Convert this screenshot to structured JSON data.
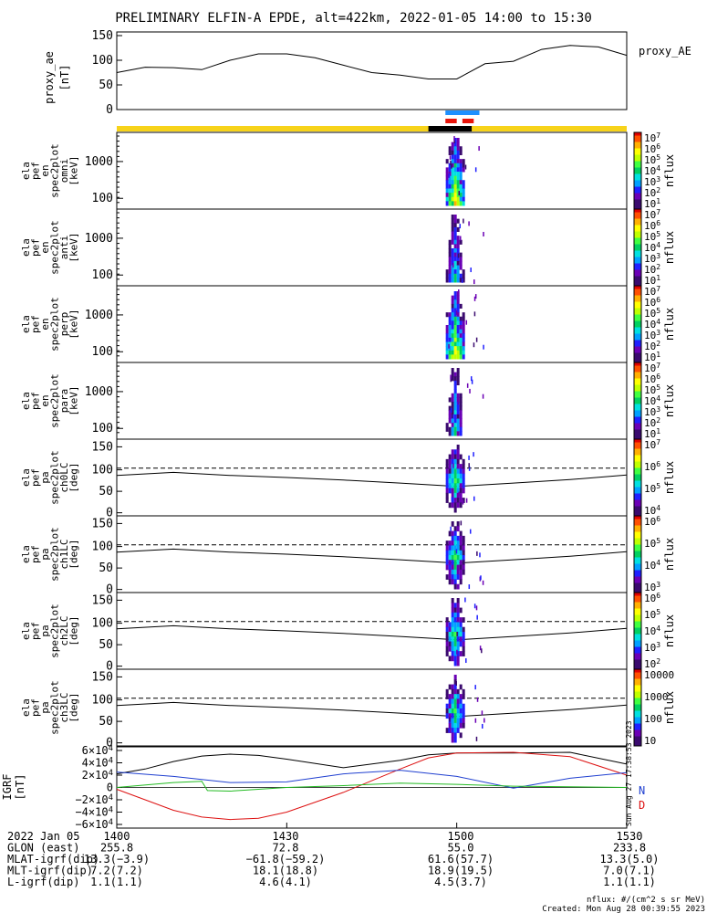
{
  "title": "PRELIMINARY ELFIN-A EPDE, alt=422km, 2022-01-05 14:00 to 15:30",
  "panels": [
    {
      "ylabel": [
        "ela",
        "pef",
        "en",
        "spec2plot",
        "omni",
        "[keV]"
      ],
      "yticks": [
        "1000",
        "100"
      ],
      "cbar_ticks": [
        "10^7",
        "10^6",
        "10^5",
        "10^4",
        "10^3",
        "10^2",
        "10^1"
      ],
      "cbar_label": "nflux"
    },
    {
      "ylabel": [
        "ela",
        "pef",
        "en",
        "spec2plot",
        "anti",
        "[keV]"
      ],
      "yticks": [
        "1000",
        "100"
      ],
      "cbar_ticks": [
        "10^7",
        "10^6",
        "10^5",
        "10^4",
        "10^3",
        "10^2",
        "10^1"
      ],
      "cbar_label": "nflux"
    },
    {
      "ylabel": [
        "ela",
        "pef",
        "en",
        "spec2plot",
        "perp",
        "[keV]"
      ],
      "yticks": [
        "1000",
        "100"
      ],
      "cbar_ticks": [
        "10^7",
        "10^6",
        "10^5",
        "10^4",
        "10^3",
        "10^2",
        "10^1"
      ],
      "cbar_label": "nflux"
    },
    {
      "ylabel": [
        "ela",
        "pef",
        "en",
        "spec2plot",
        "para",
        "[keV]"
      ],
      "yticks": [
        "1000",
        "100"
      ],
      "cbar_ticks": [
        "10^7",
        "10^6",
        "10^5",
        "10^4",
        "10^3",
        "10^2",
        "10^1"
      ],
      "cbar_label": "nflux"
    },
    {
      "ylabel": [
        "ela",
        "pef",
        "pa",
        "spec2plot",
        "ch0LC",
        "[deg]"
      ],
      "yticks": [
        "150",
        "100",
        "50",
        "0"
      ],
      "cbar_ticks": [
        "10^7",
        "10^6",
        "10^5",
        "10^4"
      ],
      "cbar_label": "nflux"
    },
    {
      "ylabel": [
        "ela",
        "pef",
        "pa",
        "spec2plot",
        "ch1LC",
        "[deg]"
      ],
      "yticks": [
        "150",
        "100",
        "50",
        "0"
      ],
      "cbar_ticks": [
        "10^6",
        "10^5",
        "10^4",
        "10^3"
      ],
      "cbar_label": "nflux"
    },
    {
      "ylabel": [
        "ela",
        "pef",
        "pa",
        "spec2plot",
        "ch2LC",
        "[deg]"
      ],
      "yticks": [
        "150",
        "100",
        "50",
        "0"
      ],
      "cbar_ticks": [
        "10^6",
        "10^5",
        "10^4",
        "10^3",
        "10^2"
      ],
      "cbar_label": "nflux"
    },
    {
      "ylabel": [
        "ela",
        "pef",
        "pa",
        "spec2plot",
        "ch3LC",
        "[deg]"
      ],
      "yticks": [
        "150",
        "100",
        "50",
        "0"
      ],
      "cbar_ticks": [
        "10000",
        "1000",
        "100",
        "10"
      ],
      "cbar_label": "nflux"
    }
  ],
  "ae_panel": {
    "ylabel": [
      "proxy_ae",
      "[nT]"
    ],
    "yticks": [
      "150",
      "100",
      "50",
      "0"
    ],
    "legend": "proxy_AE"
  },
  "igrf_panel": {
    "ylabel": [
      "IGRF",
      "[nT]"
    ],
    "yticks": [
      "6×10^4",
      "4×10^4",
      "2×10^4",
      "0",
      "−2×10^4",
      "−4×10^4",
      "−6×10^4"
    ],
    "legend": [
      "N",
      "D"
    ],
    "side_text": "Sun Aug 27 17:38:53 2023"
  },
  "colors": {
    "ae": "#000000",
    "igrf_black": "#000000",
    "igrf_blue": "#1f3fd0",
    "igrf_green": "#22bb22",
    "igrf_red": "#dd1111",
    "yellow_bar": "#f7d31a",
    "black_bar": "#000000",
    "blue_bar": "#1e90ff",
    "red_bar": "#e8140a"
  },
  "bottom_table": {
    "rows": [
      {
        "label": "2022 Jan 05",
        "values": [
          "1400",
          "1430",
          "1500",
          "1530"
        ]
      },
      {
        "label": "GLON (east)",
        "values": [
          "255.8",
          "72.8",
          "55.0",
          "233.8"
        ]
      },
      {
        "label": "MLAT-igrf(dip)",
        "values": [
          "13.3(−3.9)",
          "−61.8(−59.2)",
          "61.6(57.7)",
          "13.3(5.0)"
        ]
      },
      {
        "label": "MLT-igrf(dip)",
        "values": [
          "7.2(7.2)",
          "18.1(18.8)",
          "18.9(19.5)",
          "7.0(7.1)"
        ]
      },
      {
        "label": "L-igrf(dip)",
        "values": [
          "1.1(1.1)",
          "4.6(4.1)",
          "4.5(3.7)",
          "1.1(1.1)"
        ]
      }
    ]
  },
  "footer": [
    "nflux: #/(cm^2 s sr MeV)",
    "Created: Mon Aug 28 00:39:55 2023"
  ],
  "chart_data": [
    {
      "type": "line",
      "title": "PRELIMINARY ELFIN-A EPDE, alt=422km, 2022-01-05 14:00 to 15:30",
      "ylabel": "proxy_ae [nT]",
      "ylim": [
        0,
        150
      ],
      "xlim": [
        "14:00",
        "15:30"
      ],
      "series": [
        {
          "name": "proxy_AE",
          "x": [
            "14:00",
            "14:05",
            "14:10",
            "14:15",
            "14:20",
            "14:25",
            "14:30",
            "14:35",
            "14:40",
            "14:45",
            "14:50",
            "14:55",
            "15:00",
            "15:05",
            "15:10",
            "15:15",
            "15:20",
            "15:25",
            "15:30"
          ],
          "values": [
            75,
            86,
            85,
            81,
            100,
            113,
            113,
            105,
            90,
            75,
            70,
            62,
            62,
            93,
            98,
            122,
            130,
            127,
            110
          ]
        }
      ]
    },
    {
      "type": "heatmap",
      "ylabel": "ela pef en spec2plot omni [keV]",
      "yscale": "log",
      "cbar_label": "nflux",
      "cbar_range": [
        "10^1",
        "10^7"
      ],
      "active_interval": [
        "14:58",
        "15:04"
      ]
    },
    {
      "type": "heatmap",
      "ylabel": "ela pef en spec2plot anti [keV]",
      "yscale": "log",
      "cbar_label": "nflux",
      "cbar_range": [
        "10^1",
        "10^7"
      ],
      "active_interval": [
        "14:58",
        "15:04"
      ]
    },
    {
      "type": "heatmap",
      "ylabel": "ela pef en spec2plot perp [keV]",
      "yscale": "log",
      "cbar_label": "nflux",
      "cbar_range": [
        "10^1",
        "10^7"
      ],
      "active_interval": [
        "14:58",
        "15:04"
      ]
    },
    {
      "type": "heatmap",
      "ylabel": "ela pef en spec2plot para [keV]",
      "yscale": "log",
      "cbar_label": "nflux",
      "cbar_range": [
        "10^1",
        "10^7"
      ],
      "active_interval": [
        "14:58",
        "15:04"
      ]
    },
    {
      "type": "heatmap",
      "ylabel": "ela pef pa spec2plot ch0LC [deg]",
      "ylim": [
        0,
        180
      ],
      "cbar_label": "nflux",
      "cbar_range": [
        "10^4",
        "10^7"
      ],
      "lines": [
        {
          "name": "loss cone",
          "x": [
            "14:00",
            "14:10",
            "14:20",
            "14:30",
            "14:40",
            "14:50",
            "15:00",
            "15:10",
            "15:20",
            "15:30"
          ],
          "values": [
            95,
            102,
            95,
            90,
            84,
            77,
            69,
            77,
            85,
            96
          ]
        },
        {
          "name": "anti loss cone",
          "x": [
            "14:00",
            "15:30"
          ],
          "values": [
            112,
            112
          ]
        }
      ]
    },
    {
      "type": "heatmap",
      "ylabel": "ela pef pa spec2plot ch1LC [deg]",
      "ylim": [
        0,
        180
      ],
      "cbar_label": "nflux",
      "cbar_range": [
        "10^3",
        "10^6"
      ]
    },
    {
      "type": "heatmap",
      "ylabel": "ela pef pa spec2plot ch2LC [deg]",
      "ylim": [
        0,
        180
      ],
      "cbar_label": "nflux",
      "cbar_range": [
        "10^2",
        "10^6"
      ]
    },
    {
      "type": "heatmap",
      "ylabel": "ela pef pa spec2plot ch3LC [deg]",
      "ylim": [
        0,
        180
      ],
      "cbar_label": "nflux",
      "cbar_range": [
        "10",
        "10000"
      ]
    },
    {
      "type": "line",
      "ylabel": "IGRF [nT]",
      "ylim": [
        -60000,
        60000
      ],
      "series": [
        {
          "name": "N",
          "x": [
            "14:00",
            "14:05",
            "14:10",
            "14:15",
            "14:20",
            "14:25",
            "14:30",
            "14:40",
            "14:50",
            "14:55",
            "15:00",
            "15:10",
            "15:20",
            "15:30"
          ],
          "values": [
            22000,
            30000,
            42000,
            51000,
            54000,
            52000,
            46000,
            32000,
            44000,
            53000,
            56000,
            56000,
            57000,
            38000
          ]
        },
        {
          "name": "D",
          "x": [
            "14:00",
            "14:05",
            "14:10",
            "14:15",
            "14:20",
            "14:25",
            "14:30",
            "14:40",
            "14:50",
            "14:55",
            "15:00",
            "15:10",
            "15:20",
            "15:30"
          ],
          "values": [
            -3000,
            -20000,
            -37000,
            -48000,
            -52000,
            -50000,
            -40000,
            -8000,
            30000,
            48000,
            56000,
            57000,
            50000,
            20000
          ]
        },
        {
          "name": "blue",
          "x": [
            "14:00",
            "14:10",
            "14:20",
            "14:30",
            "14:40",
            "14:50",
            "15:00",
            "15:10",
            "15:20",
            "15:30"
          ],
          "values": [
            25000,
            18000,
            8000,
            9000,
            22000,
            28000,
            18000,
            -1000,
            15000,
            24000
          ]
        },
        {
          "name": "green",
          "x": [
            "14:00",
            "14:10",
            "14:15",
            "14:16",
            "14:20",
            "14:30",
            "14:40",
            "14:50",
            "15:00",
            "15:10",
            "15:20",
            "15:30"
          ],
          "values": [
            0,
            8000,
            10000,
            -5000,
            -6000,
            0,
            3000,
            7000,
            5000,
            2000,
            1000,
            0
          ]
        }
      ]
    }
  ]
}
